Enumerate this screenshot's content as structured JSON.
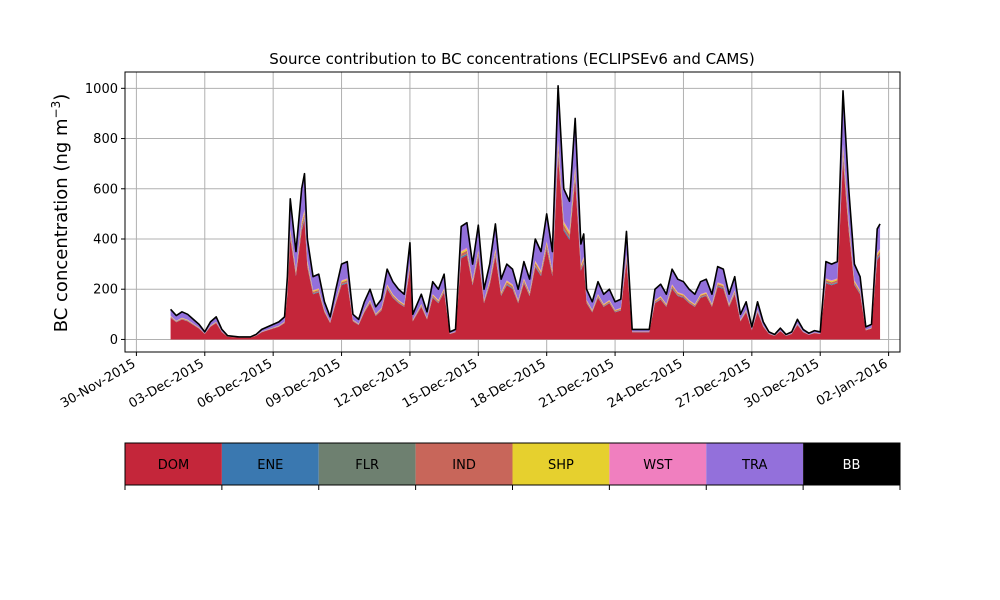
{
  "chart_data": {
    "type": "area",
    "title": "Source contribution to BC concentrations (ECLIPSEv6 and CAMS)",
    "ylabel": "BC concentration (ng m",
    "ylabel_sup": "−3",
    "ylabel_close": ")",
    "ylim": [
      -50,
      1065
    ],
    "yticks": [
      0,
      200,
      400,
      600,
      800,
      1000
    ],
    "xlim": [
      "2015-11-29T12:00",
      "2016-01-02T12:00"
    ],
    "xticks": [
      "30-Nov-2015",
      "03-Dec-2015",
      "06-Dec-2015",
      "09-Dec-2015",
      "12-Dec-2015",
      "15-Dec-2015",
      "18-Dec-2015",
      "21-Dec-2015",
      "24-Dec-2015",
      "27-Dec-2015",
      "30-Dec-2015",
      "02-Jan-2016"
    ],
    "grid": true,
    "legend_position": "bottom",
    "colors": {
      "DOM": "#c4263a",
      "ENE": "#3a78b0",
      "FLR": "#6e8070",
      "IND": "#c8665a",
      "SHP": "#e6d02e",
      "WST": "#f07fbf",
      "TRA": "#9370db",
      "BB": "#000000"
    },
    "legend": [
      "DOM",
      "ENE",
      "FLR",
      "IND",
      "SHP",
      "WST",
      "TRA",
      "BB"
    ],
    "series_order": [
      "DOM",
      "ENE",
      "FLR",
      "IND",
      "SHP",
      "WST",
      "TRA"
    ],
    "series_fractions": {
      "DOM": 0.72,
      "ENE": 0.01,
      "FLR": 0.005,
      "IND": 0.025,
      "SHP": 0.015,
      "WST": 0.01,
      "TRA": 0.215
    },
    "total": [
      [
        "2015-12-01T12:00",
        120
      ],
      [
        "2015-12-01T18:00",
        95
      ],
      [
        "2015-12-02T00:00",
        110
      ],
      [
        "2015-12-02T06:00",
        100
      ],
      [
        "2015-12-02T12:00",
        80
      ],
      [
        "2015-12-02T18:00",
        60
      ],
      [
        "2015-12-03T00:00",
        30
      ],
      [
        "2015-12-03T06:00",
        70
      ],
      [
        "2015-12-03T12:00",
        90
      ],
      [
        "2015-12-03T18:00",
        40
      ],
      [
        "2015-12-04T00:00",
        15
      ],
      [
        "2015-12-04T12:00",
        10
      ],
      [
        "2015-12-05T00:00",
        10
      ],
      [
        "2015-12-05T06:00",
        20
      ],
      [
        "2015-12-05T12:00",
        40
      ],
      [
        "2015-12-05T18:00",
        50
      ],
      [
        "2015-12-06T00:00",
        60
      ],
      [
        "2015-12-06T06:00",
        70
      ],
      [
        "2015-12-06T12:00",
        90
      ],
      [
        "2015-12-06T15:00",
        250
      ],
      [
        "2015-12-06T18:00",
        560
      ],
      [
        "2015-12-07T00:00",
        350
      ],
      [
        "2015-12-07T06:00",
        600
      ],
      [
        "2015-12-07T09:00",
        660
      ],
      [
        "2015-12-07T12:00",
        400
      ],
      [
        "2015-12-07T18:00",
        250
      ],
      [
        "2015-12-08T00:00",
        260
      ],
      [
        "2015-12-08T06:00",
        150
      ],
      [
        "2015-12-08T12:00",
        90
      ],
      [
        "2015-12-08T18:00",
        200
      ],
      [
        "2015-12-09T00:00",
        300
      ],
      [
        "2015-12-09T06:00",
        310
      ],
      [
        "2015-12-09T12:00",
        100
      ],
      [
        "2015-12-09T18:00",
        80
      ],
      [
        "2015-12-10T00:00",
        150
      ],
      [
        "2015-12-10T06:00",
        200
      ],
      [
        "2015-12-10T12:00",
        130
      ],
      [
        "2015-12-10T18:00",
        160
      ],
      [
        "2015-12-11T00:00",
        280
      ],
      [
        "2015-12-11T06:00",
        230
      ],
      [
        "2015-12-11T12:00",
        200
      ],
      [
        "2015-12-11T18:00",
        180
      ],
      [
        "2015-12-12T00:00",
        385
      ],
      [
        "2015-12-12T03:00",
        100
      ],
      [
        "2015-12-12T12:00",
        180
      ],
      [
        "2015-12-12T18:00",
        110
      ],
      [
        "2015-12-13T00:00",
        230
      ],
      [
        "2015-12-13T06:00",
        200
      ],
      [
        "2015-12-13T12:00",
        260
      ],
      [
        "2015-12-13T18:00",
        30
      ],
      [
        "2015-12-14T00:00",
        40
      ],
      [
        "2015-12-14T06:00",
        450
      ],
      [
        "2015-12-14T12:00",
        465
      ],
      [
        "2015-12-14T18:00",
        300
      ],
      [
        "2015-12-15T00:00",
        455
      ],
      [
        "2015-12-15T06:00",
        200
      ],
      [
        "2015-12-15T12:00",
        300
      ],
      [
        "2015-12-15T18:00",
        460
      ],
      [
        "2015-12-16T00:00",
        240
      ],
      [
        "2015-12-16T06:00",
        300
      ],
      [
        "2015-12-16T12:00",
        280
      ],
      [
        "2015-12-16T18:00",
        200
      ],
      [
        "2015-12-17T00:00",
        310
      ],
      [
        "2015-12-17T06:00",
        240
      ],
      [
        "2015-12-17T12:00",
        400
      ],
      [
        "2015-12-17T18:00",
        350
      ],
      [
        "2015-12-18T00:00",
        500
      ],
      [
        "2015-12-18T06:00",
        350
      ],
      [
        "2015-12-18T12:00",
        1010
      ],
      [
        "2015-12-18T18:00",
        600
      ],
      [
        "2015-12-19T00:00",
        550
      ],
      [
        "2015-12-19T06:00",
        880
      ],
      [
        "2015-12-19T12:00",
        380
      ],
      [
        "2015-12-19T15:00",
        420
      ],
      [
        "2015-12-19T18:00",
        200
      ],
      [
        "2015-12-20T00:00",
        150
      ],
      [
        "2015-12-20T06:00",
        230
      ],
      [
        "2015-12-20T12:00",
        180
      ],
      [
        "2015-12-20T18:00",
        200
      ],
      [
        "2015-12-21T00:00",
        150
      ],
      [
        "2015-12-21T06:00",
        160
      ],
      [
        "2015-12-21T12:00",
        430
      ],
      [
        "2015-12-21T18:00",
        40
      ],
      [
        "2015-12-22T00:00",
        40
      ],
      [
        "2015-12-22T12:00",
        40
      ],
      [
        "2015-12-22T18:00",
        200
      ],
      [
        "2015-12-23T00:00",
        220
      ],
      [
        "2015-12-23T06:00",
        180
      ],
      [
        "2015-12-23T12:00",
        280
      ],
      [
        "2015-12-23T18:00",
        240
      ],
      [
        "2015-12-24T00:00",
        230
      ],
      [
        "2015-12-24T06:00",
        200
      ],
      [
        "2015-12-24T12:00",
        180
      ],
      [
        "2015-12-24T18:00",
        230
      ],
      [
        "2015-12-25T00:00",
        240
      ],
      [
        "2015-12-25T06:00",
        180
      ],
      [
        "2015-12-25T12:00",
        290
      ],
      [
        "2015-12-25T18:00",
        280
      ],
      [
        "2015-12-26T00:00",
        180
      ],
      [
        "2015-12-26T06:00",
        250
      ],
      [
        "2015-12-26T12:00",
        100
      ],
      [
        "2015-12-26T18:00",
        150
      ],
      [
        "2015-12-27T00:00",
        50
      ],
      [
        "2015-12-27T06:00",
        150
      ],
      [
        "2015-12-27T12:00",
        70
      ],
      [
        "2015-12-27T18:00",
        30
      ],
      [
        "2015-12-28T00:00",
        20
      ],
      [
        "2015-12-28T06:00",
        45
      ],
      [
        "2015-12-28T12:00",
        20
      ],
      [
        "2015-12-28T18:00",
        30
      ],
      [
        "2015-12-29T00:00",
        80
      ],
      [
        "2015-12-29T06:00",
        40
      ],
      [
        "2015-12-29T12:00",
        25
      ],
      [
        "2015-12-29T18:00",
        35
      ],
      [
        "2015-12-30T00:00",
        30
      ],
      [
        "2015-12-30T06:00",
        310
      ],
      [
        "2015-12-30T12:00",
        300
      ],
      [
        "2015-12-30T18:00",
        310
      ],
      [
        "2015-12-31T00:00",
        990
      ],
      [
        "2015-12-31T06:00",
        600
      ],
      [
        "2015-12-31T12:00",
        300
      ],
      [
        "2015-12-31T18:00",
        250
      ],
      [
        "2016-01-01T00:00",
        50
      ],
      [
        "2016-01-01T06:00",
        60
      ],
      [
        "2016-01-01T12:00",
        440
      ],
      [
        "2016-01-01T15:00",
        460
      ]
    ]
  }
}
